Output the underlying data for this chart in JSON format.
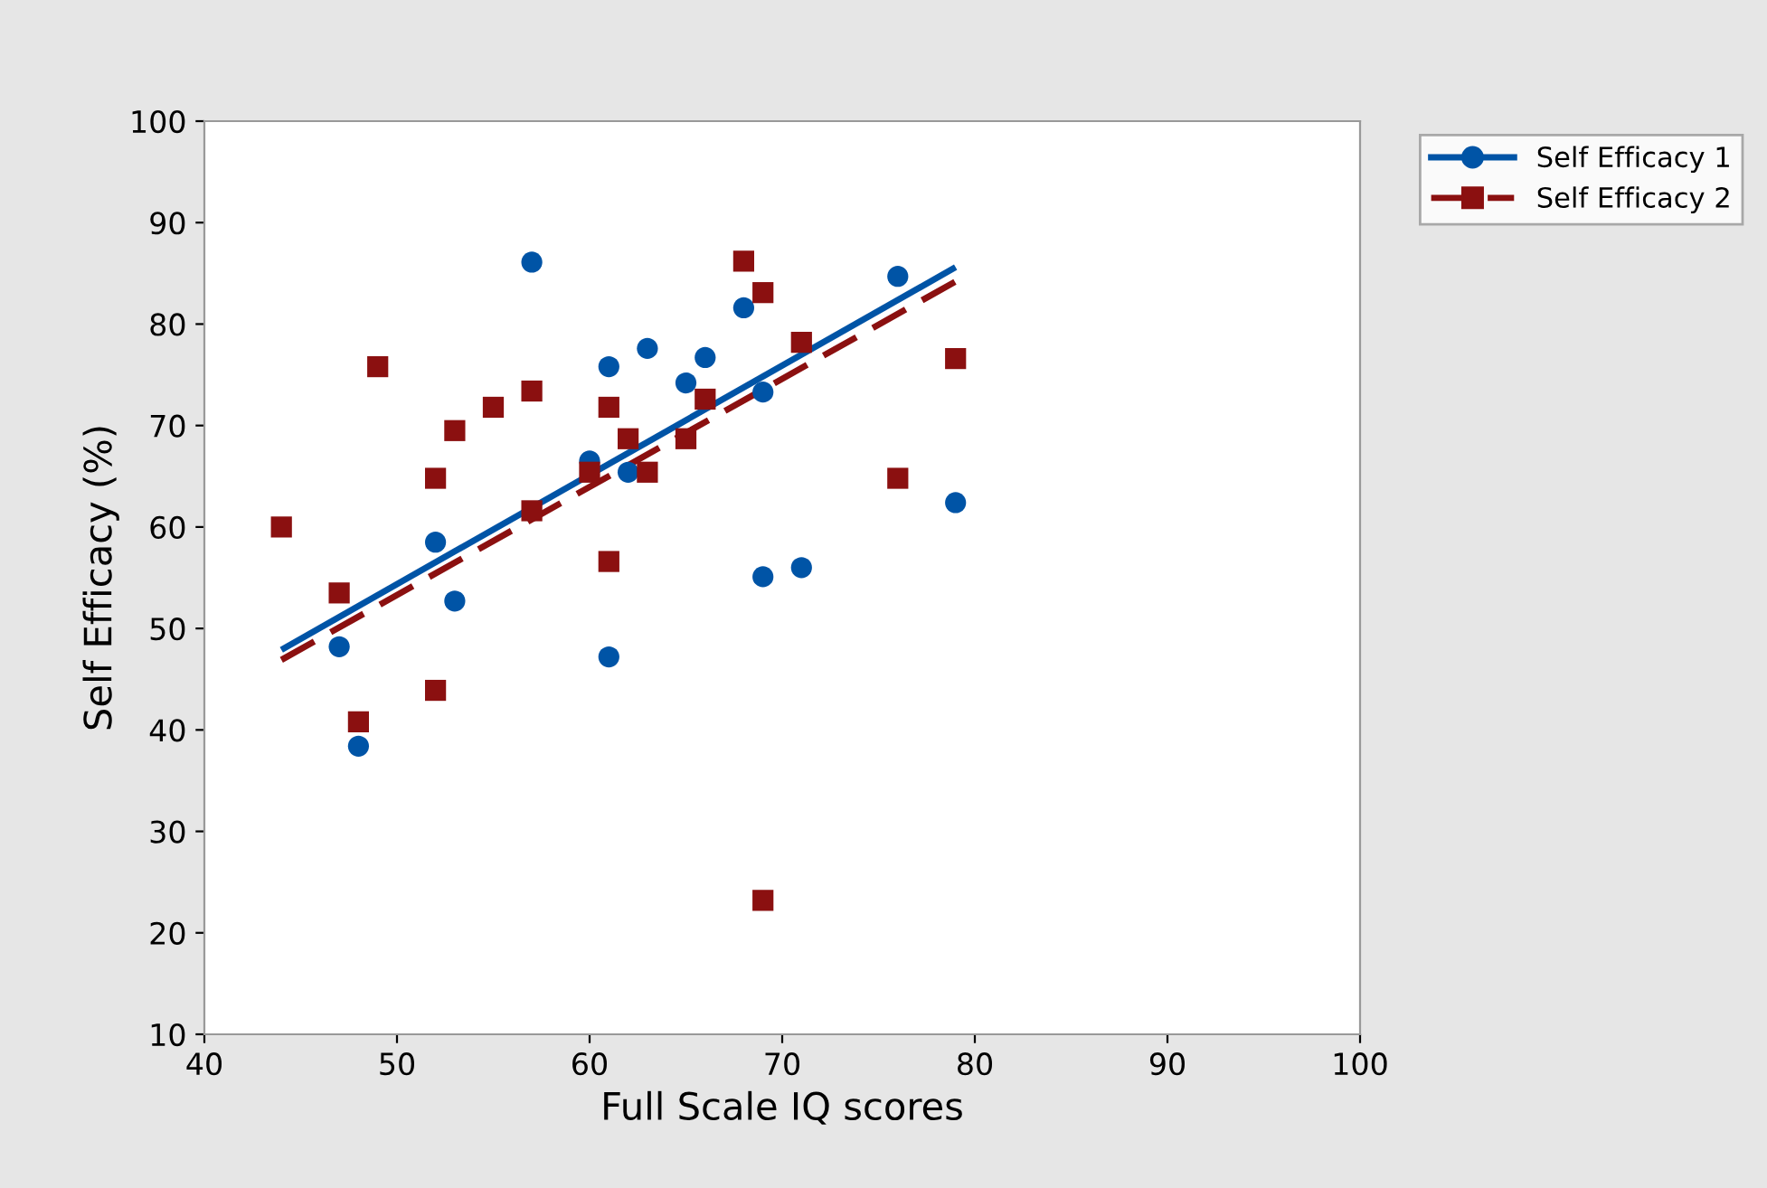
{
  "chart_data": {
    "type": "scatter",
    "xlabel": "Full Scale IQ scores",
    "ylabel": "Self Efficacy (%)",
    "xlim": [
      40,
      100
    ],
    "xticks": [
      40,
      50,
      60,
      70,
      80,
      90,
      100
    ],
    "ylim": [
      10,
      100
    ],
    "yticks": [
      10,
      20,
      30,
      40,
      50,
      60,
      70,
      80,
      90,
      100
    ],
    "grid": false,
    "legend": "top right",
    "series": [
      {
        "name": "Self Efficacy 1",
        "marker": "circle",
        "color": "#0054a6",
        "x": [
          47,
          48,
          52,
          53,
          57,
          60,
          61,
          61,
          62,
          63,
          65,
          66,
          68,
          69,
          69,
          71,
          76,
          79
        ],
        "values": [
          48.2,
          38.4,
          58.5,
          52.7,
          86.1,
          66.5,
          75.8,
          47.2,
          65.4,
          77.6,
          74.2,
          76.7,
          81.6,
          73.3,
          55.1,
          56.0,
          84.7,
          62.4
        ]
      },
      {
        "type": "line",
        "line_style": "solid",
        "color": "#0054a6",
        "x": [
          44,
          79
        ],
        "values": [
          47.9,
          85.6
        ]
      },
      {
        "name": "Self Efficacy 2",
        "marker": "square",
        "color": "#8b1010",
        "x": [
          44,
          47,
          48,
          49,
          52,
          52,
          53,
          55,
          57,
          57,
          60,
          61,
          61,
          62,
          63,
          65,
          66,
          68,
          69,
          69,
          71,
          76,
          79
        ],
        "values": [
          60.0,
          53.5,
          40.8,
          75.8,
          64.8,
          43.9,
          69.5,
          71.8,
          73.4,
          61.6,
          65.4,
          71.8,
          56.6,
          68.7,
          65.4,
          68.7,
          72.6,
          86.2,
          83.1,
          23.2,
          78.2,
          64.8,
          76.6
        ]
      },
      {
        "type": "line",
        "line_style": "dashed",
        "color": "#8b1010",
        "x": [
          44,
          79
        ],
        "values": [
          46.9,
          84.2
        ]
      }
    ]
  }
}
